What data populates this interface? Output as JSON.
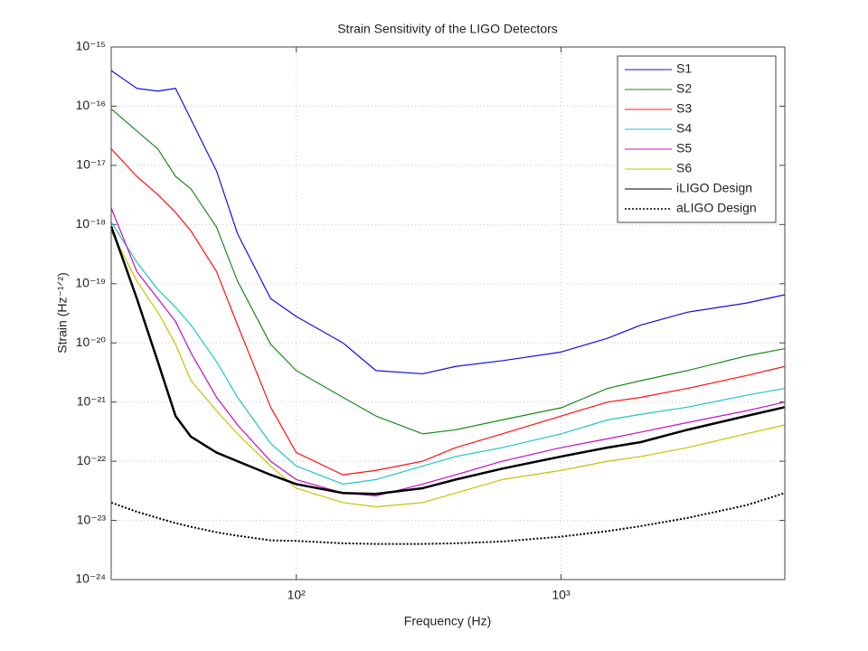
{
  "chart_data": {
    "type": "line",
    "title": "Strain Sensitivity of the LIGO Detectors",
    "xlabel": "Frequency (Hz)",
    "ylabel": "Strain (Hz⁻¹ᐟ²)",
    "xscale": "log",
    "yscale": "log",
    "grid": true,
    "legend": "upper right",
    "xlim": [
      20,
      7000
    ],
    "ylim": [
      1e-24,
      1e-15
    ],
    "xticks": [
      {
        "value": 100,
        "label": "10²"
      },
      {
        "value": 1000,
        "label": "10³"
      }
    ],
    "yticks": [
      {
        "value": 1e-15,
        "label": "10⁻¹⁵"
      },
      {
        "value": 1e-16,
        "label": "10⁻¹⁶"
      },
      {
        "value": 1e-17,
        "label": "10⁻¹⁷"
      },
      {
        "value": 1e-18,
        "label": "10⁻¹⁸"
      },
      {
        "value": 1e-19,
        "label": "10⁻¹⁹"
      },
      {
        "value": 1e-20,
        "label": "10⁻²⁰"
      },
      {
        "value": 1e-21,
        "label": "10⁻²¹"
      },
      {
        "value": 1e-22,
        "label": "10⁻²²"
      },
      {
        "value": 1e-23,
        "label": "10⁻²³"
      },
      {
        "value": 1e-24,
        "label": "10⁻²⁴"
      }
    ],
    "x": [
      20,
      25,
      30,
      35,
      40,
      50,
      60,
      80,
      100,
      150,
      200,
      300,
      400,
      600,
      1000,
      1500,
      2000,
      3000,
      5000,
      7000
    ],
    "series": [
      {
        "name": "S1",
        "color": "#1010e0",
        "style": "solid",
        "values": [
          4e-16,
          2e-16,
          1.8e-16,
          2e-16,
          6e-17,
          8e-18,
          7e-19,
          5.6e-20,
          2.8e-20,
          1e-20,
          3.4e-21,
          3e-21,
          4e-21,
          5e-21,
          7e-21,
          1.2e-20,
          2e-20,
          3.3e-20,
          4.7e-20,
          6.5e-20
        ]
      },
      {
        "name": "S2",
        "color": "#1a8a1a",
        "style": "solid",
        "values": [
          9e-17,
          3.8e-17,
          1.9e-17,
          6.5e-18,
          4e-18,
          9e-19,
          1.1e-19,
          9.5e-21,
          3.4e-21,
          1.2e-21,
          5.8e-22,
          2.9e-22,
          3.4e-22,
          5e-22,
          8e-22,
          1.7e-21,
          2.3e-21,
          3.4e-21,
          6e-21,
          8e-21
        ]
      },
      {
        "name": "S3",
        "color": "#ff1010",
        "style": "solid",
        "values": [
          1.9e-17,
          6.5e-18,
          3.2e-18,
          1.6e-18,
          7.8e-19,
          1.6e-19,
          2e-20,
          8.2e-22,
          1.4e-22,
          5.9e-23,
          7e-23,
          1e-22,
          1.7e-22,
          2.9e-22,
          5.8e-22,
          1e-21,
          1.2e-21,
          1.7e-21,
          2.8e-21,
          4e-21
        ]
      },
      {
        "name": "S4",
        "color": "#22c4c8",
        "style": "solid",
        "values": [
          1.1e-18,
          2.3e-19,
          8e-20,
          4e-20,
          2e-20,
          4.8e-21,
          1.2e-21,
          2e-22,
          8.3e-23,
          4.1e-23,
          4.9e-23,
          8.3e-23,
          1.2e-22,
          1.7e-22,
          2.9e-22,
          5e-22,
          6.2e-22,
          8.2e-22,
          1.3e-21,
          1.7e-21
        ]
      },
      {
        "name": "S5",
        "color": "#c010c0",
        "style": "solid",
        "values": [
          1.9e-18,
          1.6e-19,
          5.6e-20,
          2.3e-20,
          6.8e-21,
          1.2e-21,
          4.1e-22,
          1e-22,
          4.9e-23,
          2.9e-23,
          2.6e-23,
          4.1e-23,
          5.9e-23,
          1e-22,
          1.7e-22,
          2.4e-22,
          3.1e-22,
          4.5e-22,
          7.1e-22,
          1e-21
        ]
      },
      {
        "name": "S6",
        "color": "#c4c400",
        "style": "solid",
        "values": [
          7.8e-19,
          1.1e-19,
          3.3e-20,
          9.5e-21,
          2.3e-21,
          7.1e-22,
          2.9e-22,
          8.3e-23,
          3.5e-23,
          2e-23,
          1.7e-23,
          2e-23,
          2.9e-23,
          4.9e-23,
          7e-23,
          1e-22,
          1.2e-22,
          1.7e-22,
          2.9e-22,
          4.1e-22
        ]
      },
      {
        "name": "iLIGO Design",
        "color": "#000000",
        "style": "solid",
        "values": [
          9.3e-19,
          5.6e-20,
          4.8e-21,
          5.8e-22,
          2.6e-22,
          1.4e-22,
          1e-22,
          5.9e-23,
          4.1e-23,
          2.9e-23,
          2.8e-23,
          3.5e-23,
          4.9e-23,
          7.5e-23,
          1.2e-22,
          1.7e-22,
          2.1e-22,
          3.4e-22,
          5.8e-22,
          8.2e-22
        ]
      },
      {
        "name": "aLIGO Design",
        "color": "#000000",
        "style": "dotted",
        "values": [
          2e-23,
          1.4e-23,
          1.1e-23,
          9e-24,
          7.8e-24,
          6.3e-24,
          5.5e-24,
          4.6e-24,
          4.5e-24,
          4.1e-24,
          4e-24,
          4e-24,
          4.1e-24,
          4.4e-24,
          5.3e-24,
          6.6e-24,
          8e-24,
          1.1e-23,
          1.8e-23,
          2.9e-23
        ]
      }
    ]
  }
}
